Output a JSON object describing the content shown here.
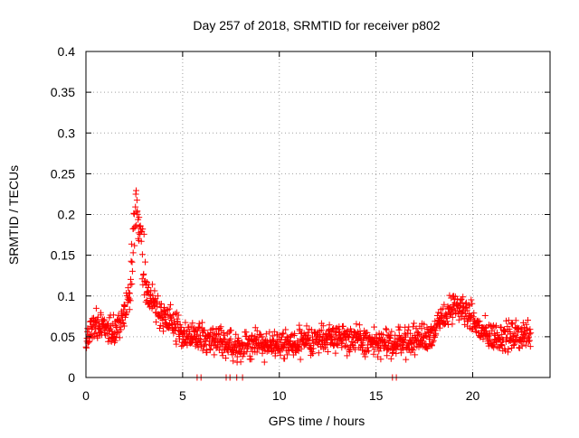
{
  "chart_data": {
    "type": "scatter",
    "title": "Day 257 of 2018, SRMTID for receiver p802",
    "xlabel": "GPS time / hours",
    "ylabel": "SRMTID / TECUs",
    "xlim": [
      0,
      24
    ],
    "ylim": [
      0,
      0.4
    ],
    "xticks": [
      0,
      5,
      10,
      15,
      20
    ],
    "xtick_labels": [
      "0",
      "5",
      "10",
      "15",
      "20"
    ],
    "yticks": [
      0,
      0.05,
      0.1,
      0.15,
      0.2,
      0.25,
      0.3,
      0.35,
      0.4
    ],
    "ytick_labels": [
      "0",
      "0.05",
      "0.1",
      "0.15",
      "0.2",
      "0.25",
      "0.3",
      "0.35",
      "0.4"
    ],
    "grid": true,
    "marker": "plus",
    "marker_color": "#ff0000",
    "series_name": "SRMTID",
    "trend": {
      "x": [
        0,
        0.5,
        1,
        1.5,
        2,
        2.3,
        2.6,
        2.9,
        3.2,
        3.6,
        4,
        4.5,
        5,
        5.5,
        6,
        7,
        8,
        9,
        10,
        11,
        12,
        13,
        14,
        15,
        15.8,
        16.2,
        17,
        18,
        18.5,
        19,
        19.5,
        20,
        20.5,
        21,
        21.5,
        22,
        23
      ],
      "y": [
        0.05,
        0.065,
        0.06,
        0.06,
        0.075,
        0.11,
        0.22,
        0.16,
        0.1,
        0.09,
        0.075,
        0.065,
        0.055,
        0.05,
        0.048,
        0.045,
        0.04,
        0.042,
        0.04,
        0.04,
        0.048,
        0.052,
        0.045,
        0.042,
        0.04,
        0.045,
        0.045,
        0.055,
        0.075,
        0.085,
        0.085,
        0.07,
        0.055,
        0.05,
        0.05,
        0.05,
        0.055
      ]
    },
    "spread": 0.022,
    "sample_count": 1400,
    "zero_markers_x": [
      5.75,
      5.95,
      7.25,
      7.45,
      7.8,
      8.1,
      15.85,
      16.05
    ]
  }
}
